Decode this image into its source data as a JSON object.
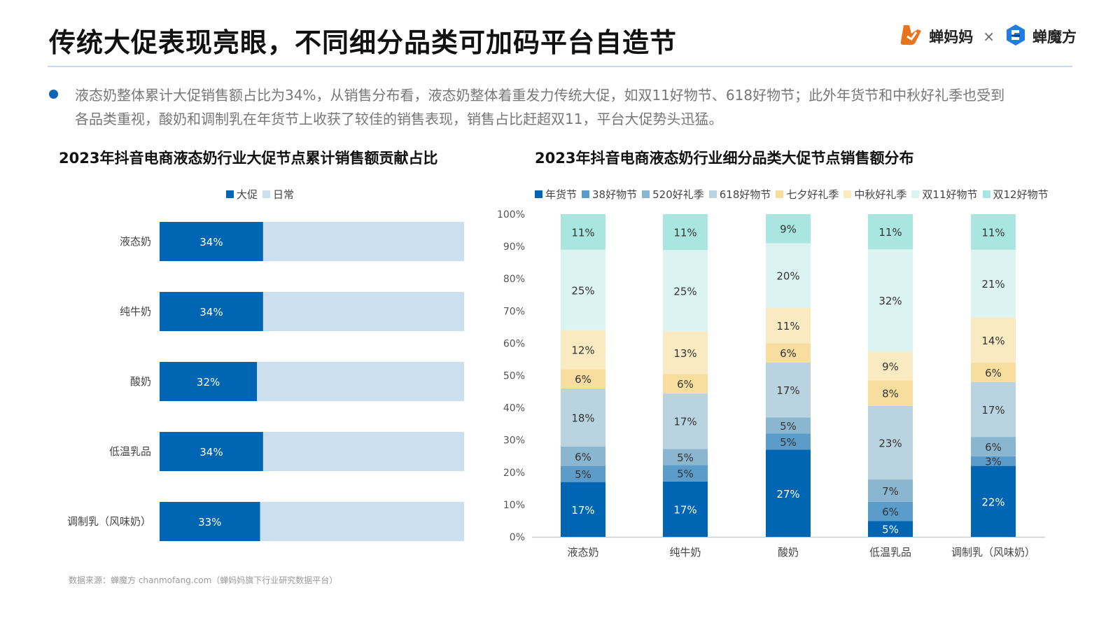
{
  "header": {
    "title": "传统大促表现亮眼，不同细分品类可加码平台自造节",
    "logo_left": "蝉妈妈",
    "logo_separator": "×",
    "logo_right": "蝉魔方"
  },
  "summary": {
    "text": "液态奶整体累计大促销售额占比为34%，从销售分布看，液态奶整体着重发力传统大促，如双11好物节、618好物节；此外年货节和中秋好礼季也受到各品类重视，酸奶和调制乳在年货节上收获了较佳的销售表现，销售占比赶超双11，平台大促势头迅猛。"
  },
  "source": "数据来源：蝉魔方 chanmofang.com（蝉妈妈旗下行业研究数据平台）",
  "colors": {
    "accent": "#0b64b5",
    "rule": "#c5d9e8"
  },
  "chart_data": [
    {
      "type": "bar",
      "orientation": "horizontal",
      "stacked": true,
      "title": "2023年抖音电商液态奶行业大促节点累计销售额贡献占比",
      "categories": [
        "液态奶",
        "纯牛奶",
        "酸奶",
        "低温乳品",
        "调制乳（风味奶）"
      ],
      "series": [
        {
          "name": "大促",
          "color": "#0066b3",
          "values": [
            34,
            34,
            32,
            34,
            33
          ],
          "labels": [
            "34%",
            "34%",
            "32%",
            "34%",
            "33%"
          ]
        },
        {
          "name": "日常",
          "color": "#cbdfee",
          "values": [
            66,
            66,
            68,
            66,
            67
          ]
        }
      ],
      "xlim": [
        0,
        100
      ],
      "legend": "top-center",
      "grid": false
    },
    {
      "type": "bar",
      "orientation": "vertical",
      "stacked": true,
      "title": "2023年抖音电商液态奶行业细分品类大促节点销售额分布",
      "categories": [
        "液态奶",
        "纯牛奶",
        "酸奶",
        "低温乳品",
        "调制乳（风味奶）"
      ],
      "series": [
        {
          "name": "年货节",
          "color": "#0066b3",
          "label_color": "#ffffff",
          "values": [
            17,
            17,
            27,
            5,
            22
          ]
        },
        {
          "name": "38好物节",
          "color": "#5b9ccb",
          "label_color": "#333333",
          "values": [
            5,
            5,
            5,
            6,
            3
          ]
        },
        {
          "name": "520好礼季",
          "color": "#8ab6d0",
          "label_color": "#333333",
          "values": [
            6,
            5,
            5,
            7,
            6
          ]
        },
        {
          "name": "618好物节",
          "color": "#b9d3e0",
          "label_color": "#333333",
          "values": [
            18,
            17,
            17,
            23,
            17
          ]
        },
        {
          "name": "七夕好礼季",
          "color": "#f8de9e",
          "label_color": "#333333",
          "values": [
            6,
            6,
            6,
            8,
            6
          ]
        },
        {
          "name": "中秋好礼季",
          "color": "#faeac1",
          "label_color": "#333333",
          "values": [
            12,
            13,
            11,
            9,
            14
          ]
        },
        {
          "name": "双11好物节",
          "color": "#dcf4f1",
          "label_color": "#333333",
          "values": [
            25,
            25,
            20,
            32,
            21
          ]
        },
        {
          "name": "双12好物节",
          "color": "#a8e6df",
          "label_color": "#333333",
          "values": [
            11,
            11,
            9,
            11,
            11
          ]
        }
      ],
      "yticks": [
        "0%",
        "10%",
        "20%",
        "30%",
        "40%",
        "50%",
        "60%",
        "70%",
        "80%",
        "90%",
        "100%"
      ],
      "ylim": [
        0,
        100
      ],
      "legend": "top",
      "grid": false
    }
  ]
}
